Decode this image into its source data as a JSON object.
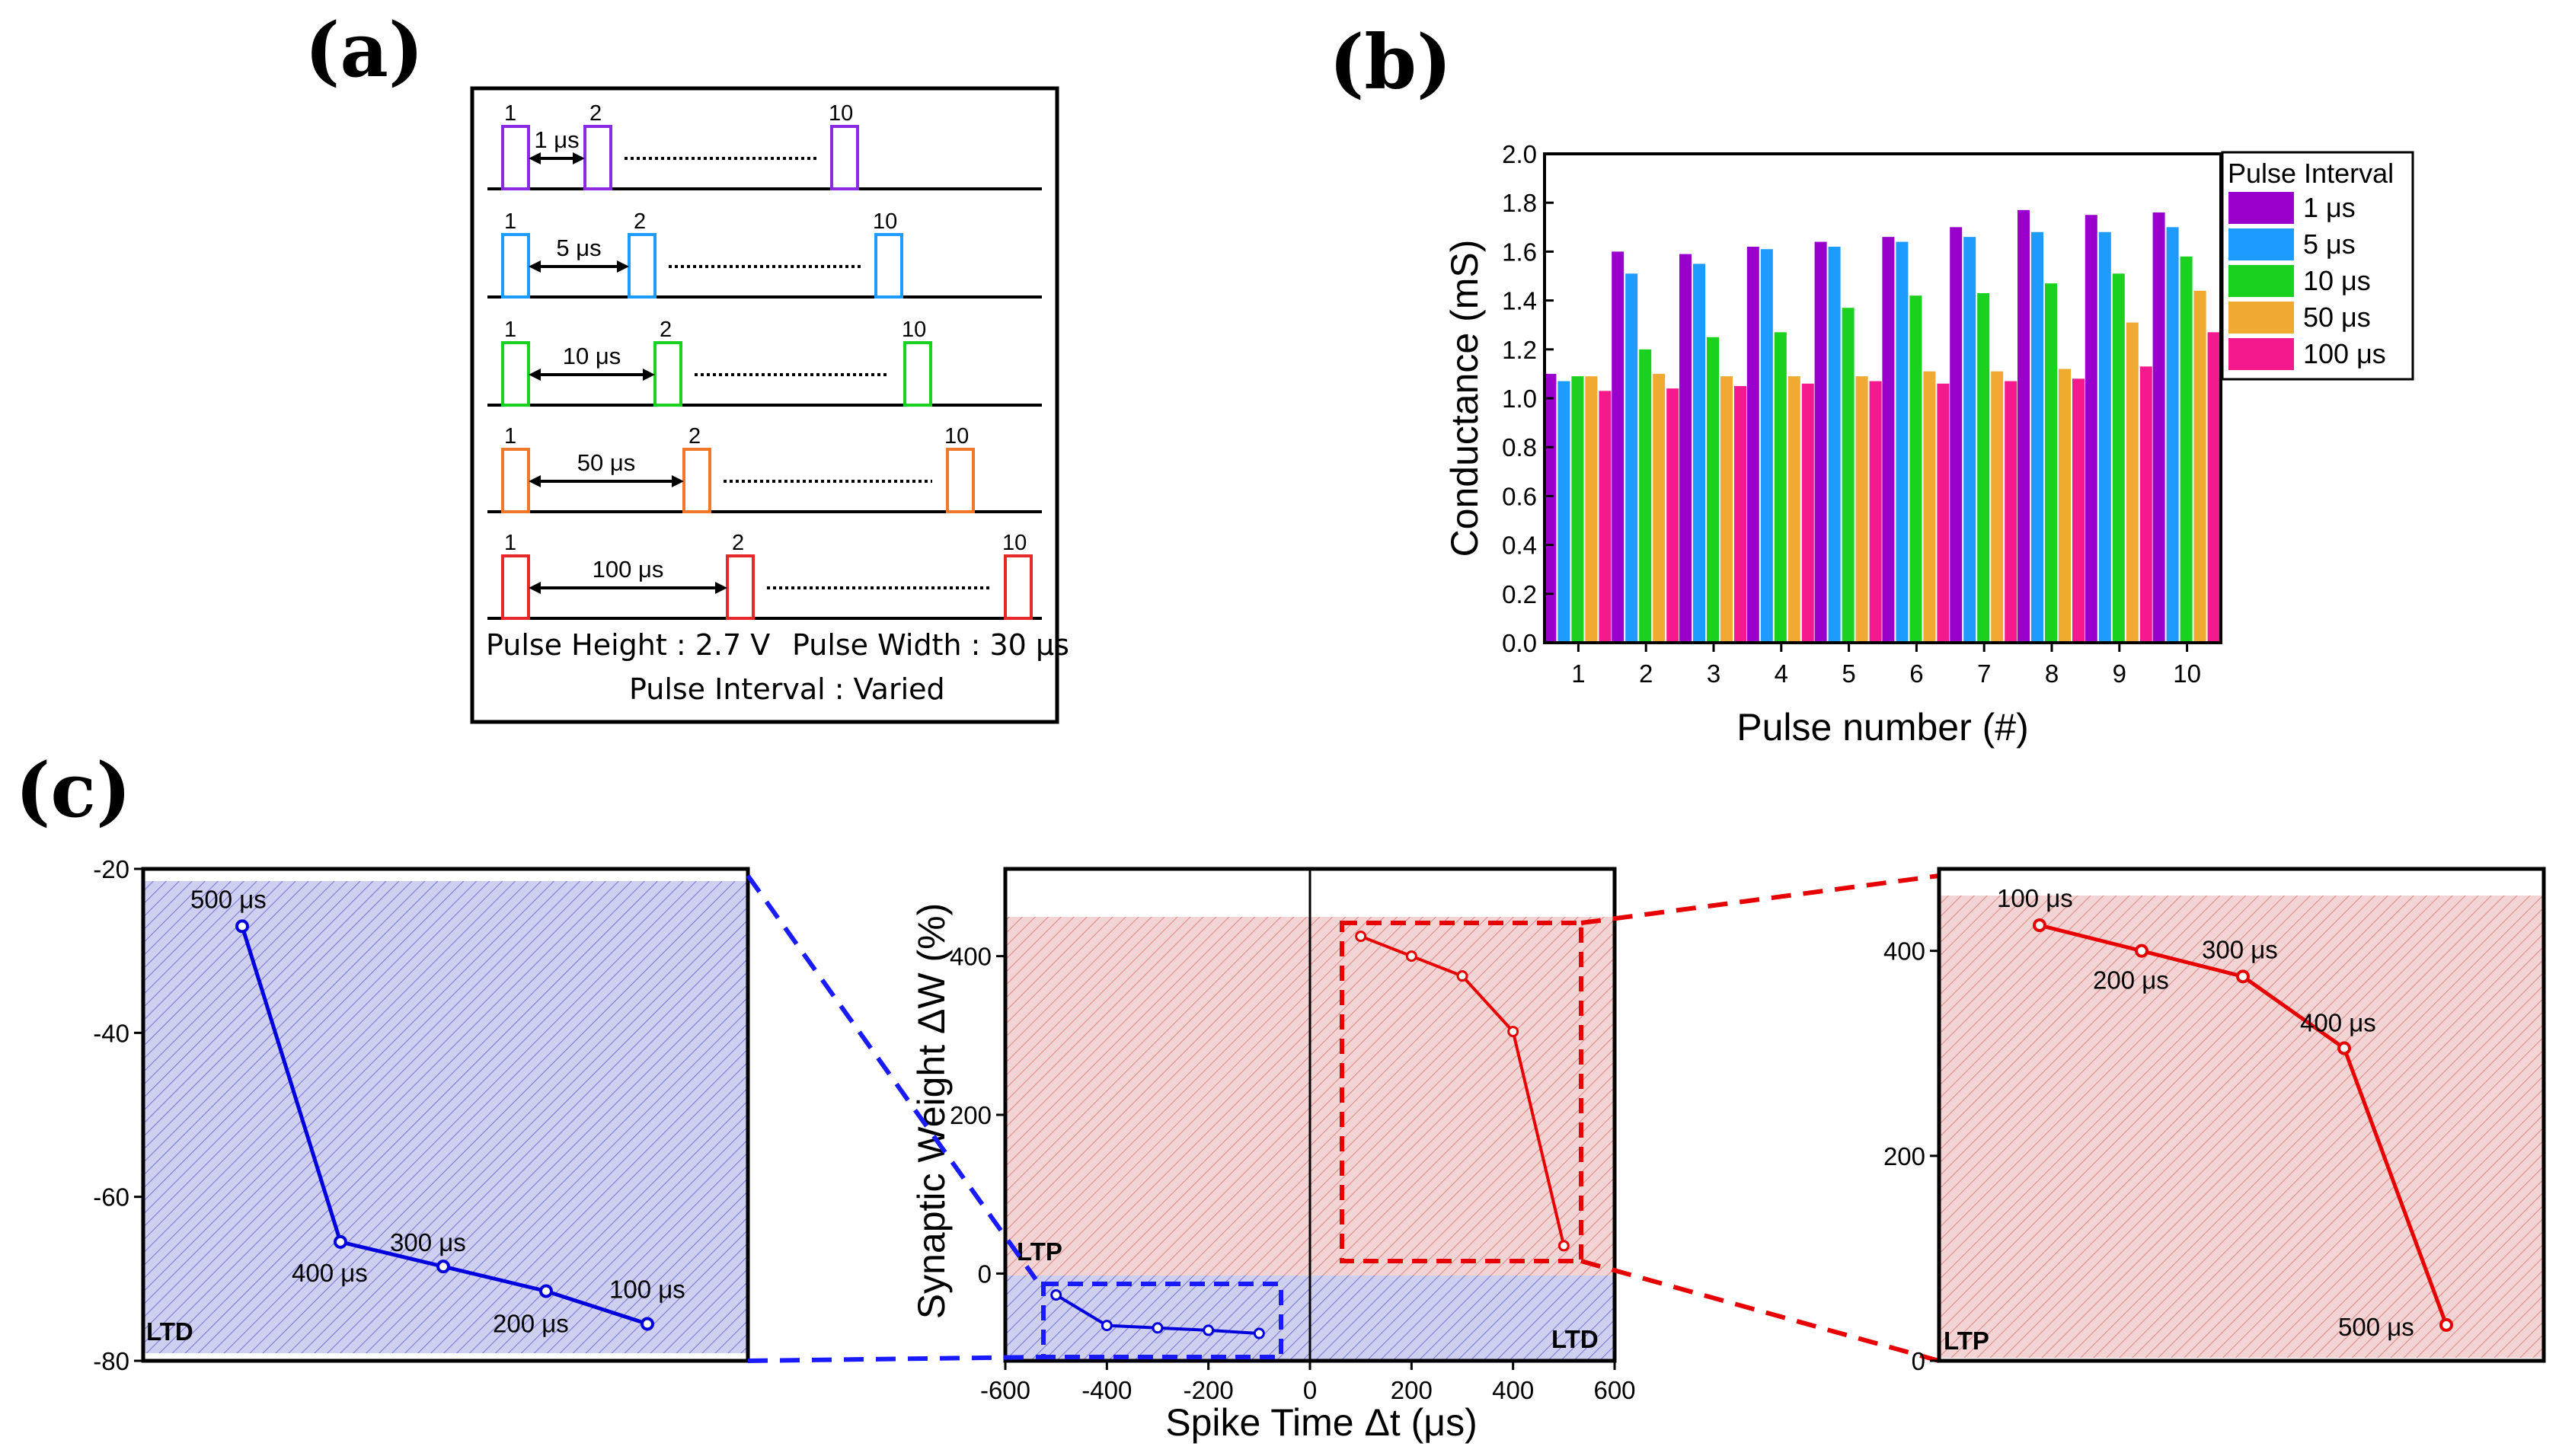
{
  "panel_labels": {
    "a": "(a)",
    "b": "(b)",
    "c": "(c)"
  },
  "colors": {
    "1us": "#9900cc",
    "5us": "#1e9bff",
    "10us": "#19d11e",
    "50us": "#f0aa32",
    "100us": "#f4198c",
    "ltd": "#0000dd",
    "ltp": "#e60000",
    "ltd_fill": "#cfcff0",
    "ltp_fill": "#f2d4d4"
  },
  "schematic": {
    "rows": [
      {
        "interval": "1 μs",
        "first": "1",
        "second": "2",
        "last": "10",
        "color": "#8a2be2"
      },
      {
        "interval": "5 μs",
        "first": "1",
        "second": "2",
        "last": "10",
        "color": "#1e9bff"
      },
      {
        "interval": "10 μs",
        "first": "1",
        "second": "2",
        "last": "10",
        "color": "#19d11e"
      },
      {
        "interval": "50 μs",
        "first": "1",
        "second": "2",
        "last": "10",
        "color": "#f07828"
      },
      {
        "interval": "100 μs",
        "first": "1",
        "second": "2",
        "last": "10",
        "color": "#e62828"
      }
    ],
    "height_text": "Pulse Height : 2.7 V",
    "width_text": "Pulse Width : 30 μs",
    "interval_text": "Pulse Interval : Varied"
  },
  "chart_data": [
    {
      "id": "b",
      "type": "bar",
      "xlabel": "Pulse number (#)",
      "ylabel": "Conductance (mS)",
      "ylim": [
        0,
        2.0
      ],
      "yticks": [
        "0.0",
        "0.2",
        "0.4",
        "0.6",
        "0.8",
        "1.0",
        "1.2",
        "1.4",
        "1.6",
        "1.8",
        "2.0"
      ],
      "categories": [
        "1",
        "2",
        "3",
        "4",
        "5",
        "6",
        "7",
        "8",
        "9",
        "10"
      ],
      "legend_title": "Pulse Interval",
      "legend_position": "top-right",
      "series": [
        {
          "name": "1 μs",
          "color": "#9900cc",
          "values": [
            1.1,
            1.6,
            1.59,
            1.62,
            1.64,
            1.66,
            1.7,
            1.77,
            1.75,
            1.76
          ]
        },
        {
          "name": "5 μs",
          "color": "#1e9bff",
          "values": [
            1.07,
            1.51,
            1.55,
            1.61,
            1.62,
            1.64,
            1.66,
            1.68,
            1.68,
            1.7
          ]
        },
        {
          "name": "10 μs",
          "color": "#19d11e",
          "values": [
            1.09,
            1.2,
            1.25,
            1.27,
            1.37,
            1.42,
            1.43,
            1.47,
            1.51,
            1.58
          ]
        },
        {
          "name": "50 μs",
          "color": "#f0aa32",
          "values": [
            1.09,
            1.1,
            1.09,
            1.09,
            1.09,
            1.11,
            1.11,
            1.12,
            1.31,
            1.44
          ]
        },
        {
          "name": "100 μs",
          "color": "#f4198c",
          "values": [
            1.03,
            1.04,
            1.05,
            1.06,
            1.07,
            1.06,
            1.07,
            1.08,
            1.13,
            1.27
          ]
        }
      ]
    },
    {
      "id": "c-left",
      "type": "line",
      "ylim": [
        -80,
        -20
      ],
      "yticks": [
        "-20",
        "-40",
        "-60",
        "-80"
      ],
      "region_label": "LTD",
      "points": [
        {
          "label": "500 μs",
          "y": -27
        },
        {
          "label": "400 μs",
          "y": -65.5
        },
        {
          "label": "300 μs",
          "y": -68.5
        },
        {
          "label": "200 μs",
          "y": -71.5
        },
        {
          "label": "100 μs",
          "y": -75.5
        }
      ]
    },
    {
      "id": "c-center",
      "type": "scatter",
      "xlabel": "Spike Time Δt (μs)",
      "ylabel": "Synaptic Weight ΔW (%)",
      "xlim": [
        -600,
        600
      ],
      "ylim": [
        -110,
        510
      ],
      "xticks": [
        "-600",
        "-400",
        "-200",
        "0",
        "200",
        "400",
        "600"
      ],
      "yticks": [
        "0",
        "200",
        "400"
      ],
      "region_labels": {
        "ltp": "LTP",
        "ltd": "LTD"
      },
      "ltd_series": {
        "x": [
          -500,
          -400,
          -300,
          -200,
          -100
        ],
        "y": [
          -27,
          -65.5,
          -68.5,
          -71.5,
          -75.5
        ]
      },
      "ltp_series": {
        "x": [
          100,
          200,
          300,
          400,
          500
        ],
        "y": [
          425,
          400,
          375,
          305,
          35
        ]
      }
    },
    {
      "id": "c-right",
      "type": "line",
      "ylim": [
        0,
        480
      ],
      "yticks": [
        "0",
        "200",
        "400"
      ],
      "region_label": "LTP",
      "points": [
        {
          "label": "100 μs",
          "y": 425
        },
        {
          "label": "200 μs",
          "y": 400
        },
        {
          "label": "300 μs",
          "y": 375
        },
        {
          "label": "400 μs",
          "y": 305
        },
        {
          "label": "500 μs",
          "y": 35
        }
      ]
    }
  ]
}
